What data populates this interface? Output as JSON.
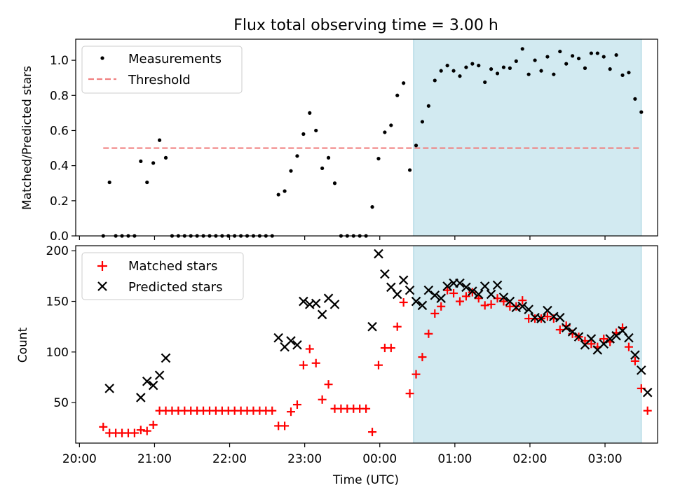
{
  "title": "Flux total observing time = 3.00 h",
  "xlabel": "Time (UTC)",
  "colors": {
    "measurements": "#000000",
    "threshold": "#f08080",
    "matched": "#ff0000",
    "predicted": "#000000",
    "span": "#add8e6"
  },
  "chart_data": [
    {
      "type": "scatter",
      "ylabel": "Matched/Predicted stars",
      "ylim": [
        0,
        1.12
      ],
      "yticks": [
        0.0,
        0.2,
        0.4,
        0.6,
        0.8,
        1.0
      ],
      "legend": {
        "placement": "top-left",
        "entries": [
          "Measurements",
          "Threshold"
        ]
      },
      "threshold": {
        "name": "Threshold",
        "value": 0.5,
        "x_start": "20:19",
        "x_end": "03:29"
      },
      "observing_span": {
        "start": "00:27",
        "end": "03:29"
      },
      "series": [
        {
          "name": "Measurements",
          "marker": "dot",
          "points": [
            [
              "20:19",
              0
            ],
            [
              "20:24",
              0.305
            ],
            [
              "20:29",
              0
            ],
            [
              "20:34",
              0
            ],
            [
              "20:39",
              0
            ],
            [
              "20:44",
              0
            ],
            [
              "20:49",
              0.425
            ],
            [
              "20:54",
              0.305
            ],
            [
              "20:59",
              0.415
            ],
            [
              "21:04",
              0.545
            ],
            [
              "21:09",
              0.445
            ],
            [
              "21:14",
              0
            ],
            [
              "21:19",
              0
            ],
            [
              "21:24",
              0
            ],
            [
              "21:29",
              0
            ],
            [
              "21:34",
              0
            ],
            [
              "21:39",
              0
            ],
            [
              "21:44",
              0
            ],
            [
              "21:49",
              0
            ],
            [
              "21:54",
              0
            ],
            [
              "21:59",
              0
            ],
            [
              "22:04",
              0
            ],
            [
              "22:09",
              0
            ],
            [
              "22:14",
              0
            ],
            [
              "22:19",
              0
            ],
            [
              "22:24",
              0
            ],
            [
              "22:29",
              0
            ],
            [
              "22:34",
              0
            ],
            [
              "22:39",
              0.235
            ],
            [
              "22:44",
              0.255
            ],
            [
              "22:49",
              0.37
            ],
            [
              "22:54",
              0.455
            ],
            [
              "22:59",
              0.58
            ],
            [
              "23:04",
              0.7
            ],
            [
              "23:09",
              0.6
            ],
            [
              "23:14",
              0.385
            ],
            [
              "23:19",
              0.445
            ],
            [
              "23:24",
              0.3
            ],
            [
              "23:29",
              0
            ],
            [
              "23:34",
              0
            ],
            [
              "23:39",
              0
            ],
            [
              "23:44",
              0
            ],
            [
              "23:49",
              0
            ],
            [
              "23:54",
              0.165
            ],
            [
              "23:59",
              0.44
            ],
            [
              "00:04",
              0.59
            ],
            [
              "00:09",
              0.63
            ],
            [
              "00:14",
              0.8
            ],
            [
              "00:19",
              0.87
            ],
            [
              "00:24",
              0.375
            ],
            [
              "00:29",
              0.515
            ],
            [
              "00:34",
              0.65
            ],
            [
              "00:39",
              0.74
            ],
            [
              "00:44",
              0.885
            ],
            [
              "00:49",
              0.94
            ],
            [
              "00:54",
              0.97
            ],
            [
              "00:59",
              0.94
            ],
            [
              "01:04",
              0.91
            ],
            [
              "01:09",
              0.96
            ],
            [
              "01:14",
              0.98
            ],
            [
              "01:19",
              0.97
            ],
            [
              "01:24",
              0.875
            ],
            [
              "01:29",
              0.95
            ],
            [
              "01:34",
              0.925
            ],
            [
              "01:39",
              0.96
            ],
            [
              "01:44",
              0.955
            ],
            [
              "01:49",
              0.995
            ],
            [
              "01:54",
              1.065
            ],
            [
              "01:59",
              0.92
            ],
            [
              "02:04",
              1.0
            ],
            [
              "02:09",
              0.94
            ],
            [
              "02:14",
              1.02
            ],
            [
              "02:19",
              0.92
            ],
            [
              "02:24",
              1.05
            ],
            [
              "02:29",
              0.98
            ],
            [
              "02:34",
              1.025
            ],
            [
              "02:39",
              1.01
            ],
            [
              "02:44",
              0.955
            ],
            [
              "02:49",
              1.04
            ],
            [
              "02:54",
              1.04
            ],
            [
              "02:59",
              1.02
            ],
            [
              "03:04",
              0.95
            ],
            [
              "03:09",
              1.03
            ],
            [
              "03:14",
              0.915
            ],
            [
              "03:19",
              0.93
            ],
            [
              "03:24",
              0.78
            ],
            [
              "03:29",
              0.705
            ]
          ]
        }
      ]
    },
    {
      "type": "scatter",
      "ylabel": "Count",
      "ylim": [
        10,
        205
      ],
      "yticks": [
        50,
        100,
        150,
        200
      ],
      "xlim": [
        "19:57",
        "03:42"
      ],
      "xticks": [
        "20:00",
        "21:00",
        "22:00",
        "23:00",
        "00:00",
        "01:00",
        "02:00",
        "03:00"
      ],
      "legend": {
        "placement": "top-left",
        "entries": [
          "Matched stars",
          "Predicted stars"
        ]
      },
      "observing_span": {
        "start": "00:27",
        "end": "03:29"
      },
      "series": [
        {
          "name": "Matched stars",
          "marker": "plus",
          "points": [
            [
              "20:19",
              26
            ],
            [
              "20:24",
              20
            ],
            [
              "20:29",
              20
            ],
            [
              "20:34",
              20
            ],
            [
              "20:39",
              20
            ],
            [
              "20:44",
              20
            ],
            [
              "20:49",
              23
            ],
            [
              "20:54",
              22
            ],
            [
              "20:59",
              28
            ],
            [
              "21:04",
              42
            ],
            [
              "21:09",
              42
            ],
            [
              "21:14",
              42
            ],
            [
              "21:19",
              42
            ],
            [
              "21:24",
              42
            ],
            [
              "21:29",
              42
            ],
            [
              "21:34",
              42
            ],
            [
              "21:39",
              42
            ],
            [
              "21:44",
              42
            ],
            [
              "21:49",
              42
            ],
            [
              "21:54",
              42
            ],
            [
              "21:59",
              42
            ],
            [
              "22:04",
              42
            ],
            [
              "22:09",
              42
            ],
            [
              "22:14",
              42
            ],
            [
              "22:19",
              42
            ],
            [
              "22:24",
              42
            ],
            [
              "22:29",
              42
            ],
            [
              "22:34",
              42
            ],
            [
              "22:39",
              27
            ],
            [
              "22:44",
              27
            ],
            [
              "22:49",
              41
            ],
            [
              "22:54",
              48
            ],
            [
              "22:59",
              87
            ],
            [
              "23:04",
              103
            ],
            [
              "23:09",
              89
            ],
            [
              "23:14",
              53
            ],
            [
              "23:19",
              68
            ],
            [
              "23:24",
              44
            ],
            [
              "23:29",
              44
            ],
            [
              "23:34",
              44
            ],
            [
              "23:39",
              44
            ],
            [
              "23:44",
              44
            ],
            [
              "23:49",
              44
            ],
            [
              "23:54",
              21
            ],
            [
              "23:59",
              87
            ],
            [
              "00:04",
              104
            ],
            [
              "00:09",
              104
            ],
            [
              "00:14",
              125
            ],
            [
              "00:19",
              149
            ],
            [
              "00:24",
              59
            ],
            [
              "00:29",
              78
            ],
            [
              "00:34",
              95
            ],
            [
              "00:39",
              118
            ],
            [
              "00:44",
              138
            ],
            [
              "00:49",
              145
            ],
            [
              "00:54",
              161
            ],
            [
              "00:59",
              158
            ],
            [
              "01:04",
              150
            ],
            [
              "01:09",
              155
            ],
            [
              "01:14",
              159
            ],
            [
              "01:19",
              153
            ],
            [
              "01:24",
              146
            ],
            [
              "01:29",
              147
            ],
            [
              "01:34",
              153
            ],
            [
              "01:39",
              150
            ],
            [
              "01:44",
              145
            ],
            [
              "01:49",
              145
            ],
            [
              "01:54",
              151
            ],
            [
              "01:59",
              133
            ],
            [
              "02:04",
              133
            ],
            [
              "02:09",
              133
            ],
            [
              "02:14",
              135
            ],
            [
              "02:19",
              133
            ],
            [
              "02:24",
              122
            ],
            [
              "02:29",
              126
            ],
            [
              "02:34",
              118
            ],
            [
              "02:39",
              115
            ],
            [
              "02:44",
              111
            ],
            [
              "02:49",
              108
            ],
            [
              "02:54",
              105
            ],
            [
              "02:59",
              113
            ],
            [
              "03:04",
              110
            ],
            [
              "03:09",
              119
            ],
            [
              "03:14",
              124
            ],
            [
              "03:19",
              105
            ],
            [
              "03:24",
              91
            ],
            [
              "03:29",
              64
            ],
            [
              "03:34",
              42
            ]
          ]
        },
        {
          "name": "Predicted stars",
          "marker": "x",
          "points": [
            [
              "20:24",
              64
            ],
            [
              "20:49",
              55
            ],
            [
              "20:54",
              71
            ],
            [
              "20:59",
              67
            ],
            [
              "21:04",
              77
            ],
            [
              "21:09",
              94
            ],
            [
              "22:39",
              114
            ],
            [
              "22:44",
              105
            ],
            [
              "22:49",
              111
            ],
            [
              "22:54",
              107
            ],
            [
              "22:59",
              150
            ],
            [
              "23:04",
              147
            ],
            [
              "23:09",
              148
            ],
            [
              "23:14",
              137
            ],
            [
              "23:19",
              153
            ],
            [
              "23:24",
              147
            ],
            [
              "23:54",
              125
            ],
            [
              "23:59",
              197
            ],
            [
              "00:04",
              177
            ],
            [
              "00:09",
              164
            ],
            [
              "00:14",
              157
            ],
            [
              "00:19",
              171
            ],
            [
              "00:24",
              161
            ],
            [
              "00:29",
              150
            ],
            [
              "00:34",
              146
            ],
            [
              "00:39",
              161
            ],
            [
              "00:44",
              156
            ],
            [
              "00:49",
              153
            ],
            [
              "00:54",
              165
            ],
            [
              "00:59",
              168
            ],
            [
              "01:04",
              168
            ],
            [
              "01:09",
              164
            ],
            [
              "01:14",
              160
            ],
            [
              "01:19",
              157
            ],
            [
              "01:24",
              165
            ],
            [
              "01:29",
              157
            ],
            [
              "01:34",
              166
            ],
            [
              "01:39",
              154
            ],
            [
              "01:44",
              150
            ],
            [
              "01:49",
              144
            ],
            [
              "01:54",
              145
            ],
            [
              "01:59",
              142
            ],
            [
              "02:04",
              134
            ],
            [
              "02:09",
              133
            ],
            [
              "02:14",
              141
            ],
            [
              "02:19",
              135
            ],
            [
              "02:24",
              134
            ],
            [
              "02:29",
              124
            ],
            [
              "02:34",
              120
            ],
            [
              "02:39",
              115
            ],
            [
              "02:44",
              107
            ],
            [
              "02:49",
              113
            ],
            [
              "02:54",
              102
            ],
            [
              "02:59",
              108
            ],
            [
              "03:04",
              113
            ],
            [
              "03:09",
              116
            ],
            [
              "03:14",
              121
            ],
            [
              "03:19",
              114
            ],
            [
              "03:24",
              97
            ],
            [
              "03:29",
              82
            ],
            [
              "03:34",
              60
            ]
          ]
        }
      ]
    }
  ]
}
